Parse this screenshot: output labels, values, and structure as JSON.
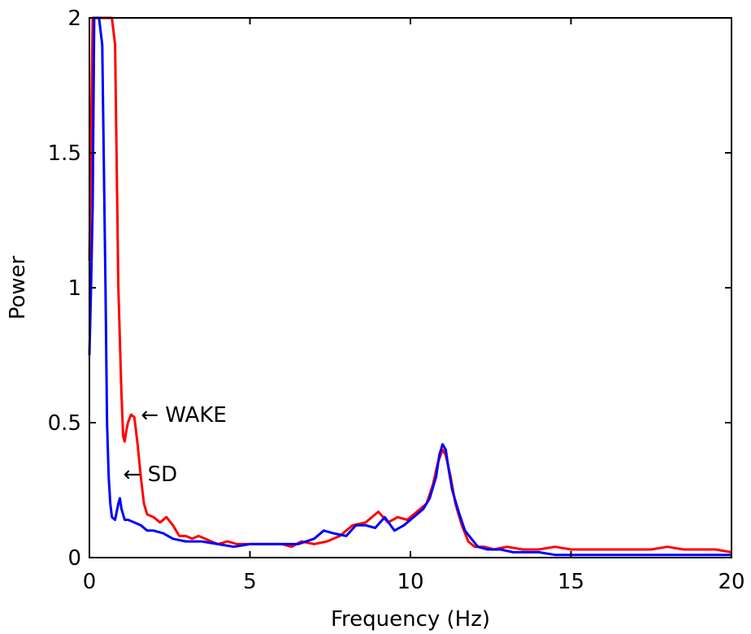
{
  "chart_data": {
    "type": "line",
    "title": "",
    "xlabel": "Frequency (Hz)",
    "ylabel": "Power",
    "xlim": [
      0,
      20
    ],
    "ylim": [
      0,
      2
    ],
    "xticks": [
      0,
      5,
      10,
      15,
      20
    ],
    "xtick_labels": [
      "0",
      "5",
      "10",
      "15",
      "20"
    ],
    "yticks": [
      0,
      0.5,
      1,
      1.5,
      2
    ],
    "ytick_labels": [
      "0",
      "0.5",
      "1",
      "1.5",
      "2"
    ],
    "grid": false,
    "series": [
      {
        "name": "WAKE",
        "color": "#ff0000",
        "x": [
          0.0,
          0.1,
          0.15,
          0.2,
          0.3,
          0.5,
          0.7,
          0.8,
          0.9,
          1.0,
          1.05,
          1.1,
          1.15,
          1.2,
          1.3,
          1.4,
          1.5,
          1.6,
          1.7,
          1.8,
          2.0,
          2.2,
          2.4,
          2.6,
          2.8,
          3.0,
          3.2,
          3.4,
          3.6,
          3.8,
          4.0,
          4.3,
          4.6,
          5.0,
          5.5,
          6.0,
          6.3,
          6.6,
          7.0,
          7.4,
          7.8,
          8.2,
          8.6,
          9.0,
          9.3,
          9.6,
          9.9,
          10.2,
          10.5,
          10.7,
          10.85,
          11.0,
          11.1,
          11.25,
          11.4,
          11.6,
          11.8,
          12.0,
          12.3,
          12.6,
          13.0,
          13.5,
          14.0,
          14.5,
          15.0,
          15.5,
          16.0,
          16.5,
          17.0,
          17.5,
          18.0,
          18.5,
          19.0,
          19.5,
          20.0
        ],
        "values": [
          1.1,
          2.0,
          2.0,
          2.0,
          2.0,
          2.0,
          2.0,
          1.9,
          1.0,
          0.6,
          0.45,
          0.43,
          0.47,
          0.5,
          0.53,
          0.52,
          0.42,
          0.3,
          0.2,
          0.16,
          0.15,
          0.13,
          0.15,
          0.12,
          0.08,
          0.08,
          0.07,
          0.08,
          0.07,
          0.06,
          0.05,
          0.06,
          0.05,
          0.05,
          0.05,
          0.05,
          0.04,
          0.06,
          0.05,
          0.06,
          0.08,
          0.12,
          0.13,
          0.17,
          0.13,
          0.15,
          0.14,
          0.17,
          0.2,
          0.27,
          0.35,
          0.4,
          0.38,
          0.3,
          0.2,
          0.12,
          0.06,
          0.04,
          0.04,
          0.03,
          0.04,
          0.03,
          0.03,
          0.04,
          0.03,
          0.03,
          0.03,
          0.03,
          0.03,
          0.03,
          0.04,
          0.03,
          0.03,
          0.03,
          0.02
        ]
      },
      {
        "name": "SD",
        "color": "#0000ff",
        "x": [
          0.0,
          0.05,
          0.1,
          0.15,
          0.2,
          0.3,
          0.4,
          0.5,
          0.55,
          0.6,
          0.65,
          0.7,
          0.8,
          0.9,
          0.95,
          1.0,
          1.1,
          1.2,
          1.4,
          1.6,
          1.8,
          2.0,
          2.3,
          2.6,
          3.0,
          3.5,
          4.0,
          4.5,
          5.0,
          5.5,
          6.0,
          6.5,
          7.0,
          7.3,
          7.6,
          8.0,
          8.3,
          8.6,
          8.9,
          9.2,
          9.5,
          9.8,
          10.1,
          10.4,
          10.6,
          10.8,
          10.9,
          11.0,
          11.1,
          11.2,
          11.3,
          11.5,
          11.7,
          11.9,
          12.1,
          12.4,
          12.8,
          13.2,
          13.6,
          14.0,
          14.5,
          15.0,
          16.0,
          17.0,
          18.0,
          19.0,
          20.0
        ],
        "values": [
          0.75,
          1.0,
          1.3,
          2.0,
          2.0,
          2.0,
          1.9,
          1.0,
          0.5,
          0.3,
          0.2,
          0.15,
          0.14,
          0.2,
          0.22,
          0.18,
          0.14,
          0.14,
          0.13,
          0.12,
          0.1,
          0.1,
          0.09,
          0.07,
          0.06,
          0.06,
          0.05,
          0.04,
          0.05,
          0.05,
          0.05,
          0.05,
          0.07,
          0.1,
          0.09,
          0.08,
          0.12,
          0.12,
          0.11,
          0.15,
          0.1,
          0.12,
          0.15,
          0.18,
          0.22,
          0.3,
          0.38,
          0.42,
          0.4,
          0.32,
          0.25,
          0.17,
          0.1,
          0.07,
          0.04,
          0.03,
          0.03,
          0.02,
          0.02,
          0.02,
          0.01,
          0.01,
          0.01,
          0.01,
          0.01,
          0.01,
          0.01
        ]
      }
    ],
    "annotations": [
      {
        "text": "← WAKE",
        "x": 1.5,
        "y": 0.53
      },
      {
        "text": "← SD",
        "x": 0.95,
        "y": 0.31
      }
    ]
  }
}
